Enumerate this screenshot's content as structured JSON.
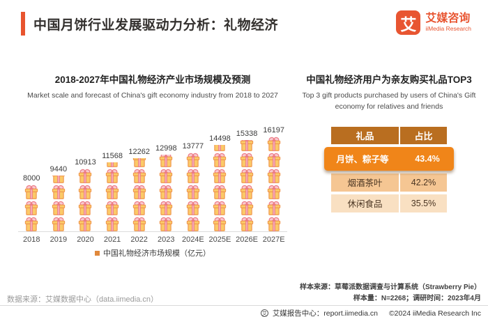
{
  "header": {
    "title": "中国月饼行业发展驱动力分析：礼物经济",
    "logo": {
      "mark": "艾",
      "name_cn": "艾媒咨询",
      "name_en": "iiMedia Research"
    }
  },
  "chart_data": {
    "type": "bar",
    "style": "pictogram-gift-boxes",
    "title": "2018-2027年中国礼物经济产业市场规模及预测",
    "subtitle_en": "Market scale and forecast of China's gift economy industry from 2018 to 2027",
    "categories": [
      "2018",
      "2019",
      "2020",
      "2021",
      "2022",
      "2023",
      "2024E",
      "2025E",
      "2026E",
      "2027E"
    ],
    "values": [
      8000,
      9440,
      10913,
      11568,
      12262,
      12998,
      13777,
      14498,
      15338,
      16197
    ],
    "legend": "中国礼物经济市场规模（亿元）",
    "xlabel": "",
    "ylabel": "亿元",
    "ylim": [
      0,
      17000
    ],
    "grid": false,
    "legend_position": "bottom"
  },
  "top3": {
    "title": "中国礼物经济用户为亲友购买礼品TOP3",
    "subtitle_en": "Top 3 gift products purchased by users of China's Gift economy for relatives and friends",
    "table": {
      "headers": [
        "礼品",
        "占比"
      ],
      "rows": [
        {
          "gift": "月饼、粽子等",
          "share": "43.4%",
          "highlight": true
        },
        {
          "gift": "烟酒茶叶",
          "share": "42.2%",
          "highlight": false
        },
        {
          "gift": "休闲食品",
          "share": "35.5%",
          "highlight": false
        }
      ]
    }
  },
  "footer": {
    "data_source": "数据来源：艾媒数据中心（data.iimedia.cn）",
    "sample_source": "样本来源：草莓派数据调查与计算系统（Strawberry Pie）",
    "sample_info": "样本量：N=2268；调研时间：2023年4月",
    "report_center": "艾媒报告中心：report.iimedia.cn",
    "copyright": "©2024  iiMedia Research Inc",
    "footer_icon_glyph": "艾"
  },
  "colors": {
    "accent": "#E8542E",
    "logo": "#E85531",
    "table_header": "#B96E20",
    "highlight_row": "#F08519",
    "row2_bg": "#F5C693",
    "row3_bg": "#F9E0C2",
    "gift_body": "#FBCA68",
    "gift_outline": "#F0984F",
    "gift_ribbon": "#EC7B86",
    "legend_marker": "#E0893C"
  }
}
